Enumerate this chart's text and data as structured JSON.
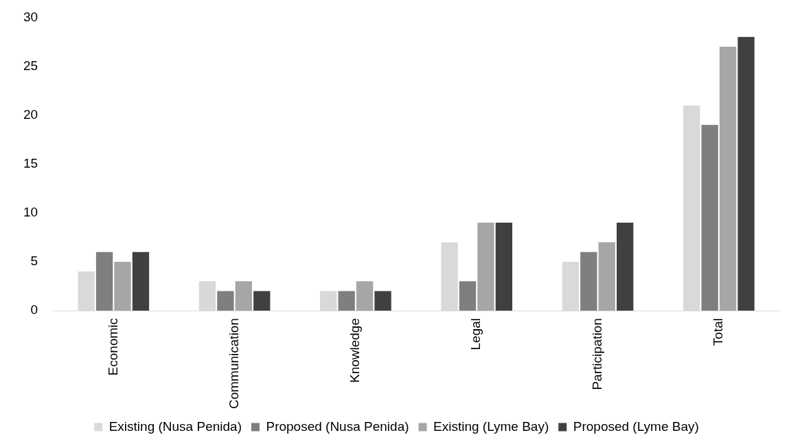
{
  "chart_data": {
    "type": "bar",
    "categories": [
      "Economic",
      "Communication",
      "Knowledge",
      "Legal",
      "Participation",
      "Total"
    ],
    "series": [
      {
        "name": "Existing (Nusa Penida)",
        "color": "#d9d9d9",
        "values": [
          4,
          3,
          2,
          7,
          5,
          21
        ]
      },
      {
        "name": "Proposed (Nusa Penida)",
        "color": "#7f7f7f",
        "values": [
          6,
          2,
          2,
          3,
          6,
          19
        ]
      },
      {
        "name": "Existing (Lyme Bay)",
        "color": "#a6a6a6",
        "values": [
          5,
          3,
          3,
          9,
          7,
          27
        ]
      },
      {
        "name": "Proposed (Lyme Bay)",
        "color": "#404040",
        "values": [
          6,
          2,
          2,
          9,
          9,
          28
        ]
      }
    ],
    "ylim": [
      0,
      30
    ],
    "yticks": [
      0,
      5,
      10,
      15,
      20,
      25,
      30
    ],
    "grid": false,
    "legend": "bottom"
  }
}
